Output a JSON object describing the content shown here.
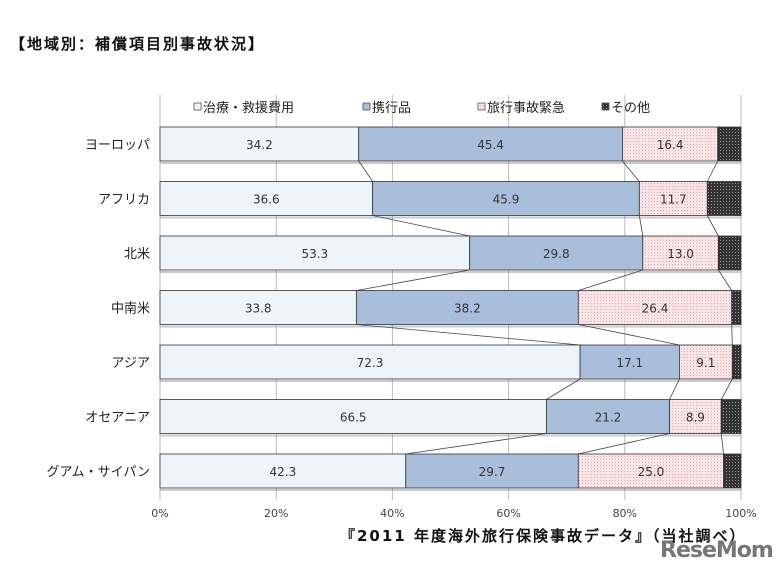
{
  "title": "【地域別：補償項目別事故状況】",
  "source": "『2011 年度海外旅行保険事故データ』（当社調べ）",
  "logo": "ReseMom",
  "chart_data": {
    "type": "bar",
    "orientation": "horizontal",
    "stacked": "percent",
    "categories": [
      "ヨーロッパ",
      "アフリカ",
      "北米",
      "中南米",
      "アジア",
      "オセアニア",
      "グアム・サイパン"
    ],
    "series": [
      {
        "name": "治療・救援費用",
        "color": "#eef5fa",
        "values": [
          34.2,
          36.6,
          53.3,
          33.8,
          72.3,
          66.5,
          42.3
        ]
      },
      {
        "name": "携行品",
        "color": "#a9bedb",
        "values": [
          45.4,
          45.9,
          29.8,
          38.2,
          17.1,
          21.2,
          29.7
        ]
      },
      {
        "name": "旅行事故緊急",
        "color": "#f8dde0",
        "values": [
          16.4,
          11.7,
          13.0,
          26.4,
          9.1,
          8.9,
          25.0
        ]
      },
      {
        "name": "その他",
        "color": "#555555",
        "values": [
          4.0,
          5.8,
          3.9,
          1.6,
          1.5,
          3.4,
          3.0
        ]
      }
    ],
    "data_labels_shown_for_series": [
      0,
      1,
      2
    ],
    "xticks": [
      "0%",
      "20%",
      "40%",
      "60%",
      "80%",
      "100%"
    ],
    "xlim": [
      0,
      100
    ],
    "grid": true,
    "legend": "top",
    "series_lines": true
  }
}
